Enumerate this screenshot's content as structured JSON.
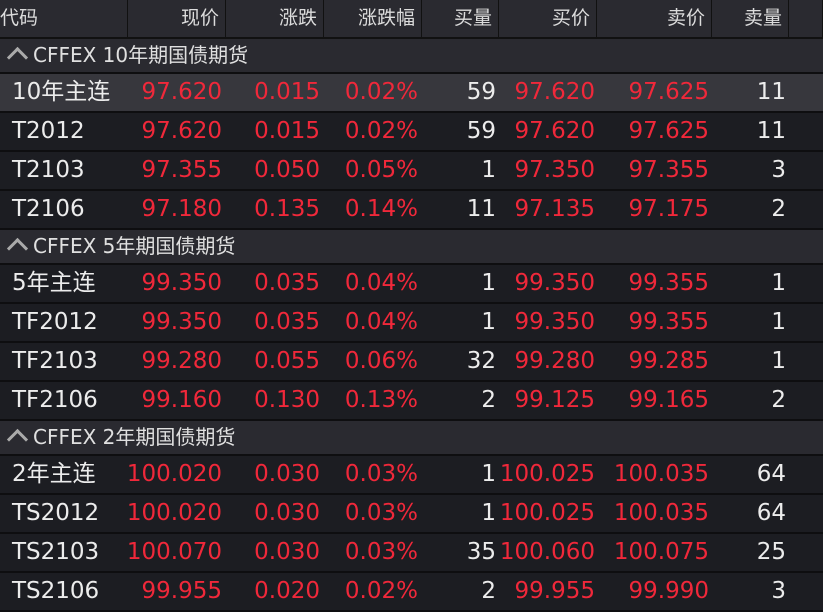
{
  "headers": [
    "代码",
    "现价",
    "涨跌",
    "涨跌幅",
    "买量",
    "买价",
    "卖价",
    "卖量"
  ],
  "colors": {
    "up": "#f0283a",
    "text": "#ececec",
    "bg": "#1c1d22",
    "header": "#2a2a30"
  },
  "groups": [
    {
      "title": "CFFEX 10年期国债期货",
      "icon": "chevron-up-icon",
      "rows": [
        [
          "10年主连",
          "97.620",
          "0.015",
          "0.02%",
          "59",
          "97.620",
          "97.625",
          "11"
        ],
        [
          "T2012",
          "97.620",
          "0.015",
          "0.02%",
          "59",
          "97.620",
          "97.625",
          "11"
        ],
        [
          "T2103",
          "97.355",
          "0.050",
          "0.05%",
          "1",
          "97.350",
          "97.355",
          "3"
        ],
        [
          "T2106",
          "97.180",
          "0.135",
          "0.14%",
          "11",
          "97.135",
          "97.175",
          "2"
        ]
      ]
    },
    {
      "title": "CFFEX 5年期国债期货",
      "icon": "chevron-up-icon",
      "rows": [
        [
          "5年主连",
          "99.350",
          "0.035",
          "0.04%",
          "1",
          "99.350",
          "99.355",
          "1"
        ],
        [
          "TF2012",
          "99.350",
          "0.035",
          "0.04%",
          "1",
          "99.350",
          "99.355",
          "1"
        ],
        [
          "TF2103",
          "99.280",
          "0.055",
          "0.06%",
          "32",
          "99.280",
          "99.285",
          "1"
        ],
        [
          "TF2106",
          "99.160",
          "0.130",
          "0.13%",
          "2",
          "99.125",
          "99.165",
          "2"
        ]
      ]
    },
    {
      "title": "CFFEX 2年期国债期货",
      "icon": "chevron-up-icon",
      "rows": [
        [
          "2年主连",
          "100.020",
          "0.030",
          "0.03%",
          "1",
          "100.025",
          "100.035",
          "64"
        ],
        [
          "TS2012",
          "100.020",
          "0.030",
          "0.03%",
          "1",
          "100.025",
          "100.035",
          "64"
        ],
        [
          "TS2103",
          "100.070",
          "0.030",
          "0.03%",
          "35",
          "100.060",
          "100.075",
          "25"
        ],
        [
          "TS2106",
          "99.955",
          "0.020",
          "0.02%",
          "2",
          "99.955",
          "99.990",
          "3"
        ]
      ]
    }
  ],
  "selected_row": "10年主连"
}
